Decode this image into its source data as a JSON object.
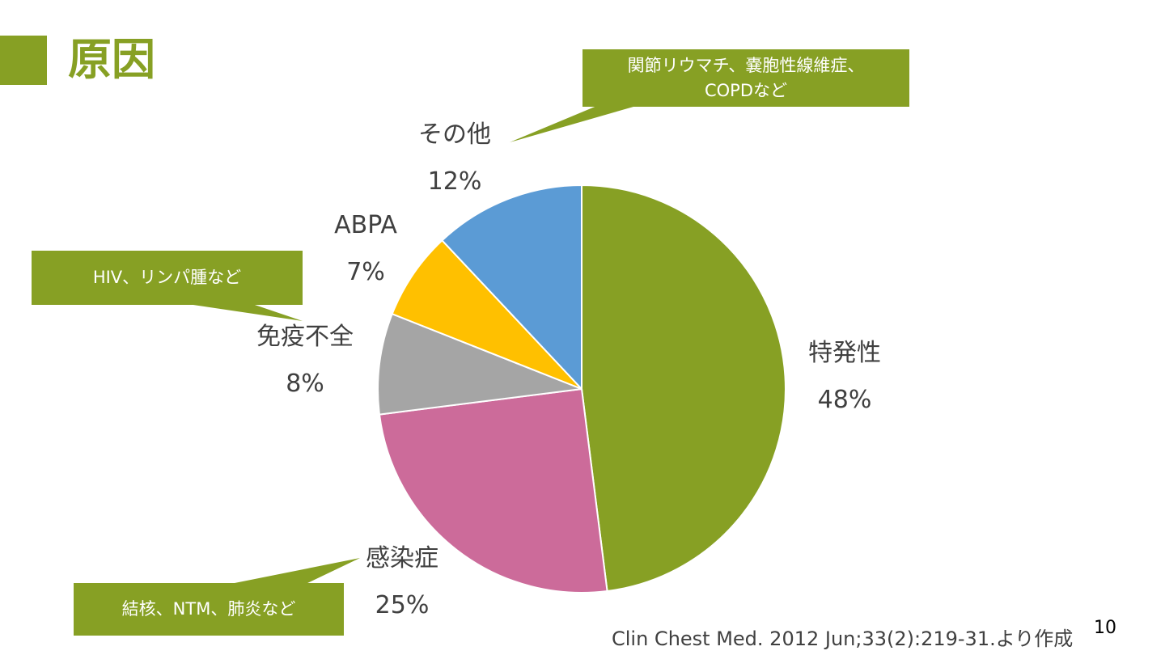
{
  "slide": {
    "title": "原因",
    "page_number": "10",
    "source": "Clin Chest Med. 2012 Jun;33(2):219-31.より作成"
  },
  "callouts": {
    "other": "関節リウマチ、嚢胞性線維症、COPDなど",
    "immuno": "HIV、リンパ腫など",
    "infection": "結核、NTM、肺炎など"
  },
  "chart_data": {
    "type": "pie",
    "title": "",
    "slices": [
      {
        "label": "特発性",
        "value": 48,
        "value_label": "48%",
        "color": "#87A024"
      },
      {
        "label": "感染症",
        "value": 25,
        "value_label": "25%",
        "color": "#CC6B9A"
      },
      {
        "label": "免疫不全",
        "value": 8,
        "value_label": "8%",
        "color": "#A5A5A5"
      },
      {
        "label": "ABPA",
        "value": 7,
        "value_label": "7%",
        "color": "#FFC000"
      },
      {
        "label": "その他",
        "value": 12,
        "value_label": "12%",
        "color": "#5B9BD5"
      }
    ],
    "start": "12 o'clock",
    "direction": "clockwise"
  }
}
